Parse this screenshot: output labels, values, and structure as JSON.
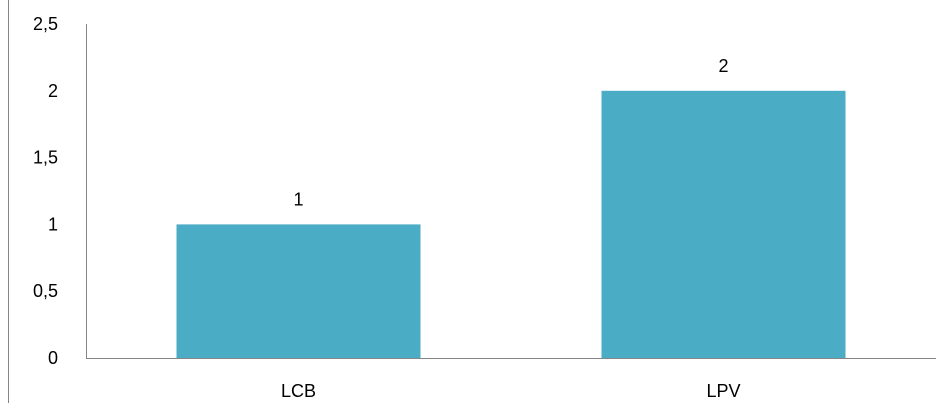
{
  "chart_data": {
    "type": "bar",
    "categories": [
      "LCB",
      "LPV"
    ],
    "values": [
      1,
      2
    ],
    "data_labels": [
      "1",
      "2"
    ],
    "y_tick_labels": [
      "0",
      "0,5",
      "1",
      "1,5",
      "2",
      "2,5"
    ],
    "y_ticks": [
      0,
      0.5,
      1,
      1.5,
      2,
      2.5
    ],
    "ylim": [
      0,
      2.5
    ],
    "grid": false,
    "legend": "none",
    "bar_color": "#4BACC6",
    "axis_color": "#868686"
  }
}
